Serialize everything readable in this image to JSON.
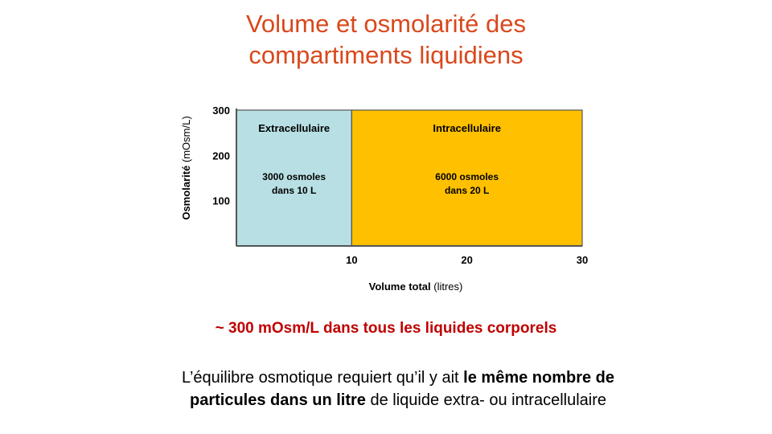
{
  "title": {
    "line1": "Volume et osmolarité des",
    "line2": "compartiments liquidiens"
  },
  "chart_data": {
    "type": "area",
    "ylabel_bold": "Osmolarité",
    "ylabel_unit": "(mOsm/L)",
    "xlabel_bold": "Volume total",
    "xlabel_unit": "(litres)",
    "y_ticks": [
      100,
      200,
      300
    ],
    "x_ticks": [
      10,
      20,
      30
    ],
    "xlim": [
      0,
      30
    ],
    "ylim": [
      0,
      300
    ],
    "grid": false,
    "compartments": [
      {
        "name": "Extracellulaire",
        "x_start": 0,
        "x_end": 10,
        "osmolarity": 300,
        "color": "#b8e0e4",
        "label_line1": "3000 osmoles",
        "label_line2": "dans 10 L"
      },
      {
        "name": "Intracellulaire",
        "x_start": 10,
        "x_end": 30,
        "osmolarity": 300,
        "color": "#ffc000",
        "label_line1": "6000 osmoles",
        "label_line2": "dans 20 L"
      }
    ]
  },
  "highlight": "~ 300 mOsm/L dans tous les liquides corporels",
  "footer": {
    "line1_normal": "L’équilibre osmotique requiert qu’il y ait ",
    "line1_bold": "le même nombre de",
    "line2_bold": "particules dans un litre",
    "line2_normal": " de liquide extra- ou intracellulaire"
  }
}
